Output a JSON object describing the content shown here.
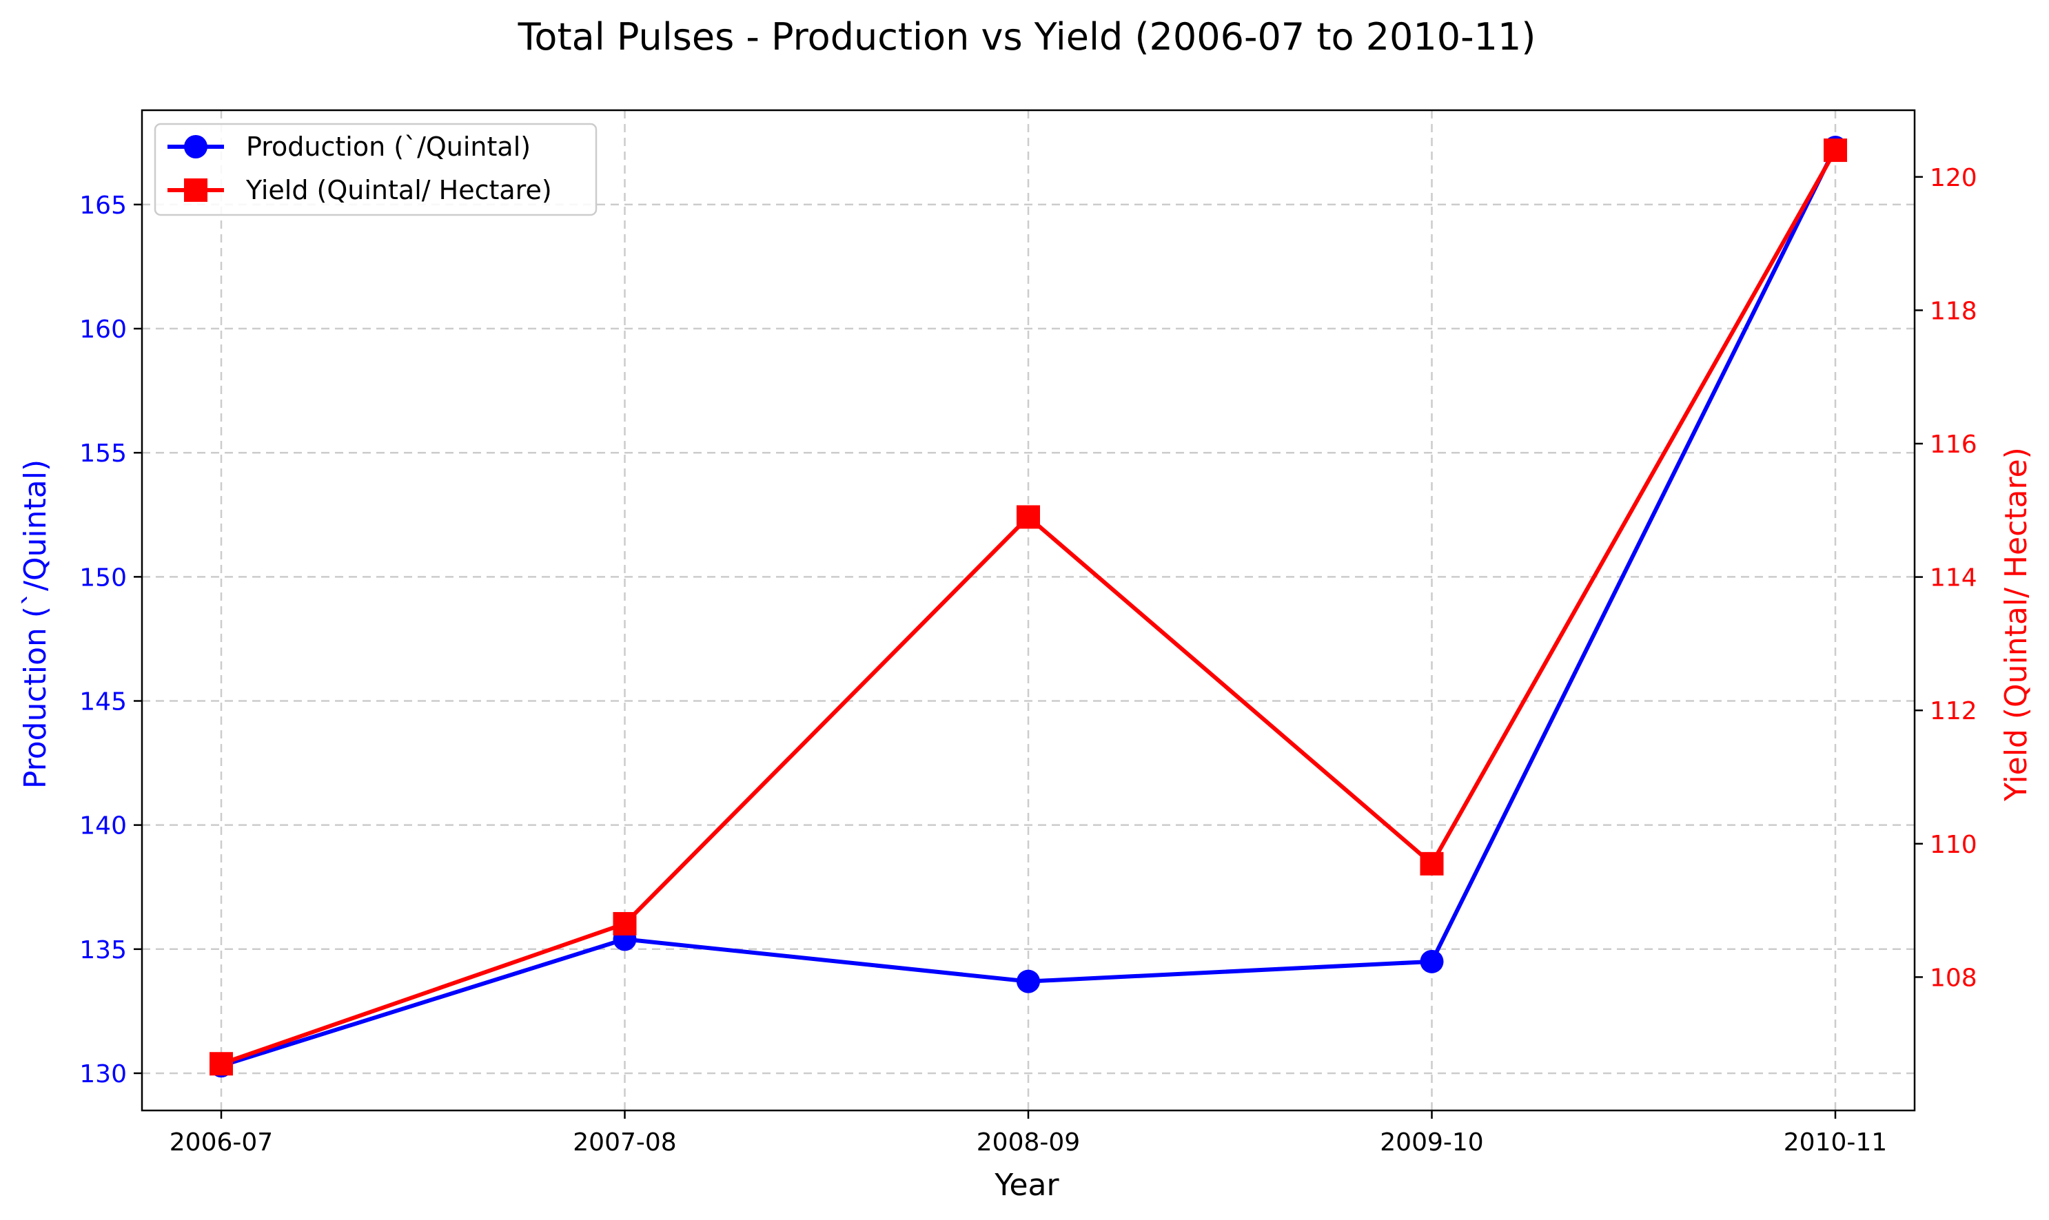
{
  "chart_data": {
    "type": "line",
    "title": "Total Pulses - Production vs Yield (2006-07 to 2010-11)",
    "xlabel": "Year",
    "categories": [
      "2006-07",
      "2007-08",
      "2008-09",
      "2009-10",
      "2010-11"
    ],
    "grid": true,
    "legend_position": "top-left",
    "y_left": {
      "label": "Production (`/Quintal)",
      "lim": [
        128.5,
        168.8
      ],
      "ticks": [
        130,
        135,
        140,
        145,
        150,
        155,
        160,
        165
      ],
      "color": "#0000ff"
    },
    "y_right": {
      "label": "Yield (Quintal/ Hectare)",
      "lim": [
        106.0,
        121.0
      ],
      "ticks": [
        108,
        110,
        112,
        114,
        116,
        118,
        120
      ],
      "color": "#ff0000"
    },
    "series": [
      {
        "name": "Production (`/Quintal)",
        "axis": "left",
        "color": "#0000ff",
        "marker": "circle",
        "values": [
          130.3,
          135.4,
          133.7,
          134.5,
          167.3
        ]
      },
      {
        "name": "Yield (Quintal/ Hectare)",
        "axis": "right",
        "color": "#ff0000",
        "marker": "square",
        "values": [
          106.7,
          108.8,
          114.9,
          109.7,
          120.4
        ]
      }
    ]
  }
}
